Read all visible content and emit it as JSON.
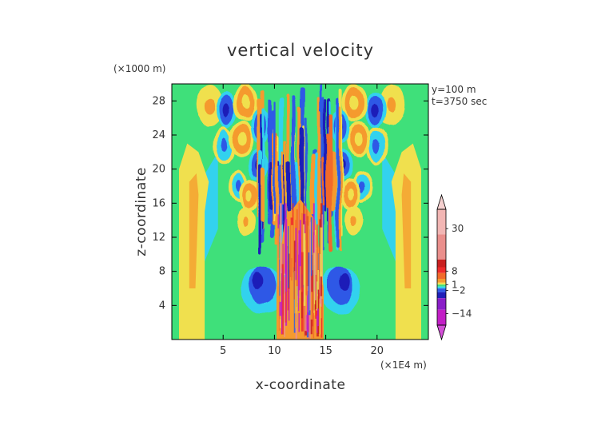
{
  "chart_data": {
    "type": "heatmap",
    "title": "vertical velocity",
    "xlabel": "x-coordinate",
    "ylabel": "z-coordinate",
    "x_unit": "(×1E4 m)",
    "y_unit": "(×1000 m)",
    "annotations": [
      "y=100 m",
      "t=3750 sec"
    ],
    "xlim": [
      0,
      25
    ],
    "ylim": [
      0,
      30
    ],
    "x_ticks": [
      5,
      10,
      15,
      20
    ],
    "y_ticks": [
      4,
      8,
      12,
      16,
      20,
      24,
      28
    ],
    "colorbar": {
      "labels": [
        "30",
        "8",
        "1",
        "−2",
        "−14"
      ],
      "label_values": [
        30,
        8,
        1,
        -2,
        -14
      ],
      "range": [
        -20,
        40
      ],
      "colors": {
        "max_arrow": "#f5d0cf",
        "pink_light": "#f2b6b4",
        "pink": "#ea8f8c",
        "red_dark": "#c92020",
        "red": "#ee2b2b",
        "orange_red": "#f26a2a",
        "orange": "#f59a2e",
        "yellow": "#f0e04e",
        "green": "#3fe07a",
        "cyan": "#33d2ee",
        "blue": "#2f59e6",
        "blue_dark": "#1f1fb8",
        "purple": "#8a1ec8",
        "magenta": "#c21ec6",
        "min_arrow": "#d24fd6"
      }
    },
    "background_color": "#3fe07a"
  }
}
